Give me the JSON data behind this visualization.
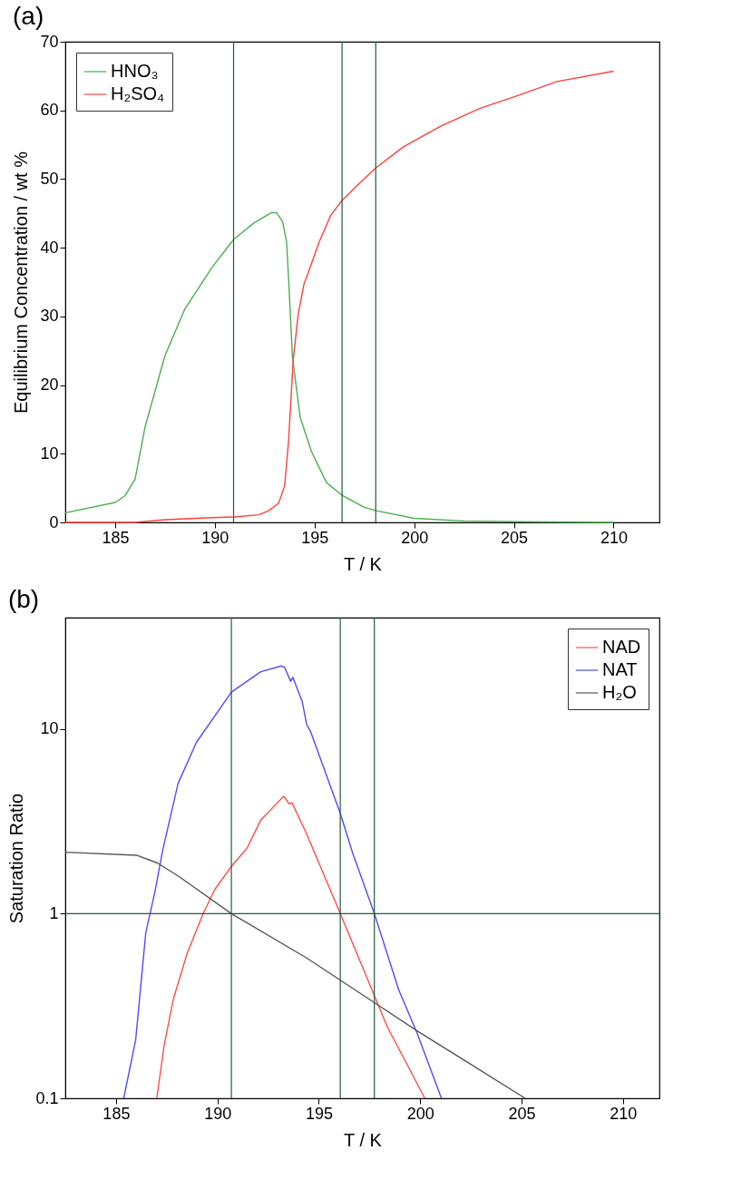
{
  "chart_data": [
    {
      "type": "line",
      "title": "(a)",
      "xlabel": "T / K",
      "ylabel": "Equilibrium Concentration / wt %",
      "xlim": [
        182.5,
        212.3
      ],
      "ylim": [
        0,
        70
      ],
      "xticks": [
        185,
        190,
        195,
        200,
        205,
        210
      ],
      "yticks": [
        0,
        10,
        20,
        30,
        40,
        50,
        60,
        70
      ],
      "legend": "top left",
      "series": [
        {
          "name": "HNO₃",
          "color": "#4caf50",
          "x": [
            182.5,
            185.0,
            185.5,
            186.0,
            186.5,
            187.5,
            188.5,
            189.85,
            190.94,
            191.96,
            192.82,
            193.1,
            193.4,
            193.6,
            193.7,
            193.89,
            194.28,
            194.85,
            195.6,
            196.4,
            197.5,
            198.1,
            200.0,
            202.5,
            205.2,
            210.0
          ],
          "values": [
            1.4,
            2.9,
            3.9,
            6.3,
            13.9,
            24.3,
            31.1,
            37.1,
            41.2,
            43.6,
            45.1,
            45.1,
            43.8,
            40.8,
            35.5,
            24.2,
            15.3,
            10.3,
            5.8,
            3.9,
            2.2,
            1.7,
            0.6,
            0.2,
            0.1,
            0
          ]
        },
        {
          "name": "H₂SO₄",
          "color": "#ff4040",
          "x": [
            182.5,
            186.0,
            187.5,
            189.85,
            191.0,
            192.2,
            192.7,
            193.2,
            193.5,
            193.7,
            193.93,
            194.18,
            194.47,
            194.7,
            195.23,
            195.81,
            196.38,
            197.15,
            198.07,
            199.46,
            201.39,
            203.31,
            205.23,
            207.16,
            210.0
          ],
          "values": [
            0,
            0,
            0.4,
            0.7,
            0.8,
            1.1,
            1.7,
            2.8,
            5.3,
            11.9,
            23.6,
            30.3,
            34.7,
            36.5,
            40.8,
            44.7,
            46.9,
            49.1,
            51.6,
            54.7,
            57.8,
            60.3,
            62.2,
            64.2,
            65.7
          ]
        }
      ],
      "ref_lines": [
        {
          "axis": "x",
          "value": 190.94,
          "color": "#1f5c3f"
        },
        {
          "axis": "x",
          "value": 196.38,
          "color": "#1f5c3f"
        },
        {
          "axis": "x",
          "value": 198.07,
          "color": "#1f5c3f"
        }
      ]
    },
    {
      "type": "line",
      "title": "(b)",
      "xlabel": "T / K",
      "ylabel": "Saturation Ratio",
      "log": true,
      "xlim": [
        182.5,
        211.8
      ],
      "ylim": [
        0.1,
        40
      ],
      "xticks": [
        185,
        190,
        195,
        200,
        205,
        210
      ],
      "yticks": [
        0.1,
        1,
        10
      ],
      "legend": "top right",
      "series": [
        {
          "name": "NAD",
          "color": "#ff4d4d",
          "x": [
            187.01,
            187.38,
            187.83,
            188.51,
            189.3,
            189.87,
            190.69,
            191.46,
            192.14,
            193.27,
            193.54,
            193.68,
            194.4,
            196.06,
            197.81,
            198.37,
            200.23
          ],
          "values": [
            0.1,
            0.195,
            0.345,
            0.61,
            1.0,
            1.35,
            1.8,
            2.26,
            3.21,
            4.32,
            3.92,
            3.98,
            2.7,
            1.0,
            0.345,
            0.245,
            0.1
          ]
        },
        {
          "name": "NAT",
          "color": "#4d4dff",
          "x": [
            185.38,
            185.97,
            186.47,
            186.92,
            187.3,
            188.06,
            188.96,
            190.69,
            192.14,
            193.16,
            193.32,
            193.61,
            193.72,
            194.18,
            194.4,
            194.59,
            196.06,
            196.67,
            197.74,
            198.94,
            199.85,
            201.05
          ],
          "values": [
            0.1,
            0.207,
            0.79,
            1.31,
            2.2,
            5.06,
            8.43,
            15.8,
            20.4,
            21.9,
            21.5,
            18.1,
            19.0,
            14.1,
            10.6,
            9.7,
            3.49,
            2.13,
            1.0,
            0.387,
            0.225,
            0.1
          ]
        },
        {
          "name": "H₂O",
          "color": "#555555",
          "x": [
            182.5,
            186.01,
            187.04,
            188.06,
            190.69,
            194.4,
            197.81,
            199.85,
            205.18
          ],
          "values": [
            2.15,
            2.07,
            1.88,
            1.6,
            1.0,
            0.575,
            0.326,
            0.232,
            0.1
          ]
        }
      ],
      "ref_lines": [
        {
          "axis": "x",
          "value": 190.69,
          "color": "#1f5c3f"
        },
        {
          "axis": "x",
          "value": 196.06,
          "color": "#1f5c3f"
        },
        {
          "axis": "x",
          "value": 197.74,
          "color": "#1f5c3f"
        },
        {
          "axis": "y",
          "value": 1,
          "color": "#1f5c3f"
        }
      ]
    }
  ]
}
